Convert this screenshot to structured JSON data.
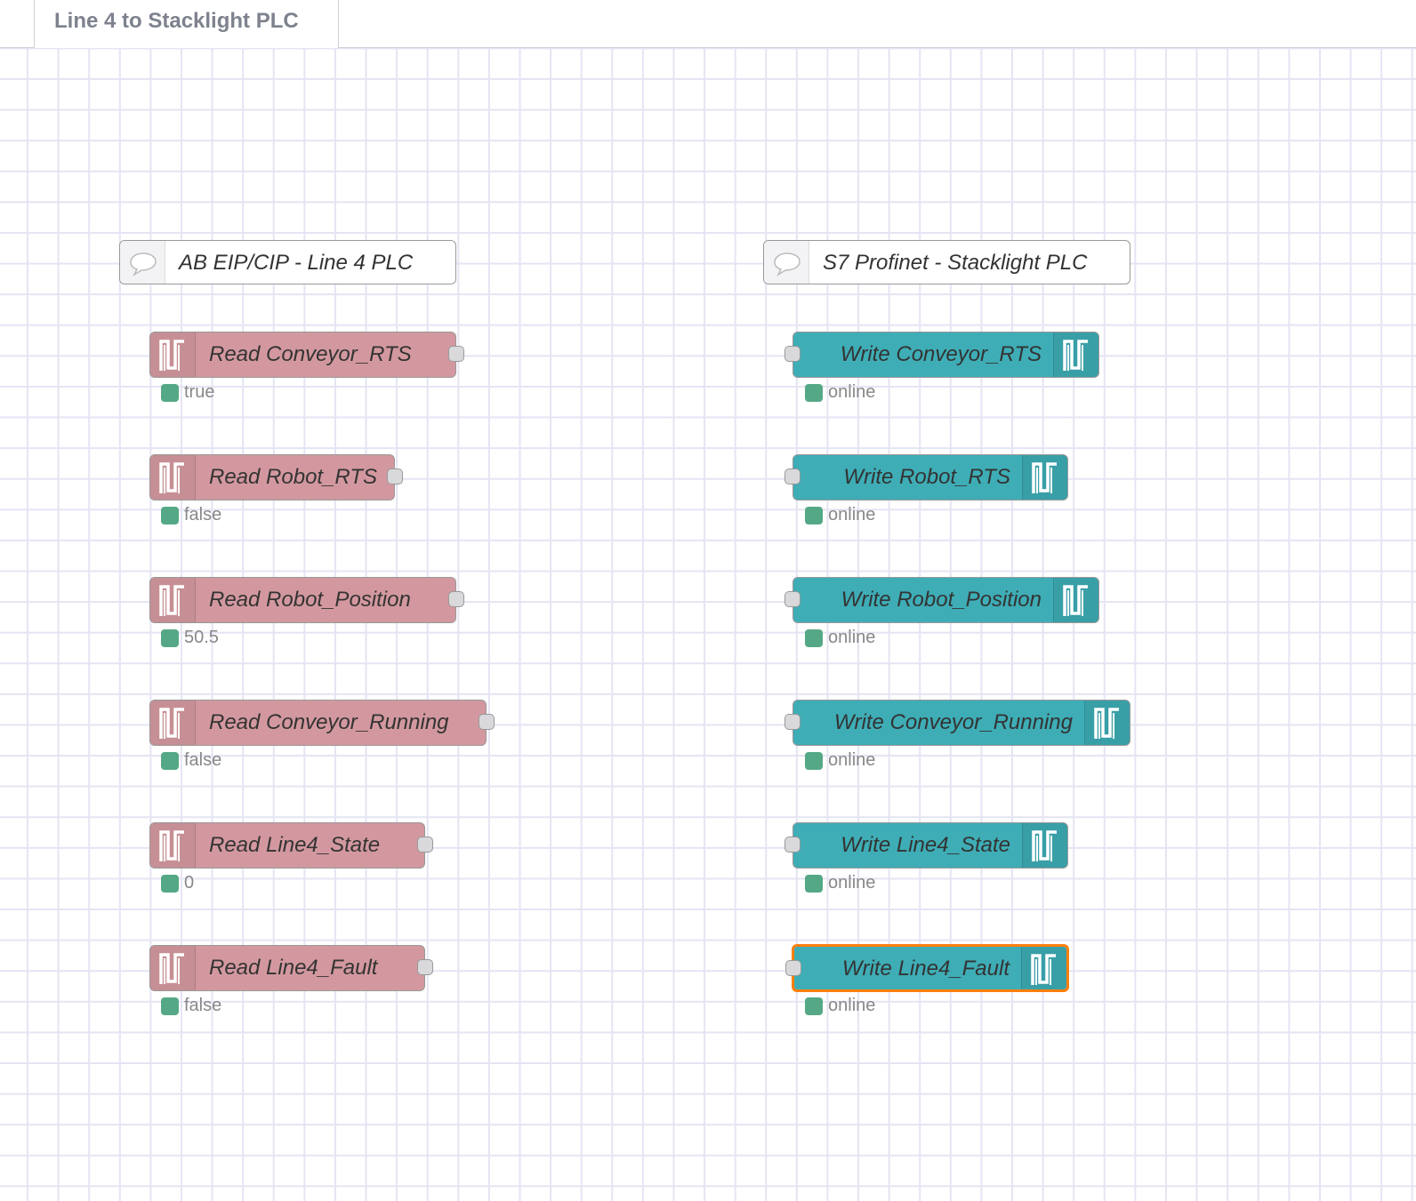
{
  "tab": {
    "title": "Line 4 to Stacklight PLC"
  },
  "colors": {
    "read_node": "#d3989f",
    "write_node": "#3eadb6",
    "selected_outline": "#ff7f0e",
    "status_ok": "#55a886"
  },
  "comments": [
    {
      "label": "AB EIP/CIP - Line 4 PLC",
      "icon": "comment-icon"
    },
    {
      "label": "S7 Profinet - Stacklight PLC",
      "icon": "comment-icon"
    }
  ],
  "read_nodes": [
    {
      "label": "Read Conveyor_RTS",
      "status": "true",
      "icon": "square-wave-icon"
    },
    {
      "label": "Read Robot_RTS",
      "status": "false",
      "icon": "square-wave-icon"
    },
    {
      "label": "Read Robot_Position",
      "status": "50.5",
      "icon": "square-wave-icon"
    },
    {
      "label": "Read Conveyor_Running",
      "status": "false",
      "icon": "square-wave-icon"
    },
    {
      "label": "Read Line4_State",
      "status": "0",
      "icon": "square-wave-icon"
    },
    {
      "label": "Read Line4_Fault",
      "status": "false",
      "icon": "square-wave-icon"
    }
  ],
  "write_nodes": [
    {
      "label": "Write Conveyor_RTS",
      "status": "online",
      "selected": false
    },
    {
      "label": "Write Robot_RTS",
      "status": "online",
      "selected": false
    },
    {
      "label": "Write Robot_Position",
      "status": "online",
      "selected": false
    },
    {
      "label": "Write Conveyor_Running",
      "status": "online",
      "selected": false
    },
    {
      "label": "Write Line4_State",
      "status": "online",
      "selected": false
    },
    {
      "label": "Write Line4_Fault",
      "status": "online",
      "selected": true
    }
  ]
}
